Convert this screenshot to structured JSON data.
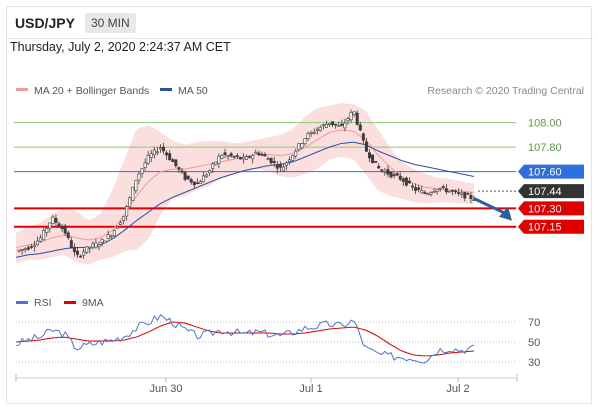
{
  "header": {
    "symbol": "USD/JPY",
    "interval": "30 MIN",
    "datetime": "Thursday, July 2, 2020 2:24:37 AM CET"
  },
  "credit": "Research © 2020 Trading Central",
  "colors": {
    "candle": "#3c3c3c",
    "ma20_band": "#f4a0a0",
    "ma50": "#2c4f9e",
    "target_green": "#8ec974",
    "pivot_blue": "#2f6fdb",
    "resistance_red": "#e00000",
    "current": "#333333",
    "rsi": "#4a74d6",
    "rsi_ma": "#e00000",
    "arrow": "#2f5c9b"
  },
  "chart_data": [
    {
      "type": "candlestick",
      "ylim": [
        106.78,
        108.25
      ],
      "legend": [
        {
          "name": "MA 20 + Bollinger Bands",
          "color": "#f29b9b"
        },
        {
          "name": "MA 50",
          "color": "#2c4f9e"
        }
      ],
      "x_ticks": [
        "Jun 30",
        "Jul 1",
        "Jul 2"
      ],
      "levels": [
        {
          "value": 108.0,
          "label": "108.00",
          "style": "green"
        },
        {
          "value": 107.8,
          "label": "107.80",
          "style": "green"
        },
        {
          "value": 107.6,
          "label": "107.60",
          "style": "blue"
        },
        {
          "value": 107.44,
          "label": "107.44",
          "style": "current"
        },
        {
          "value": 107.3,
          "label": "107.30",
          "style": "red"
        },
        {
          "value": 107.15,
          "label": "107.15",
          "style": "red"
        }
      ],
      "price_path": [
        106.95,
        106.98,
        107.05,
        107.22,
        107.12,
        106.9,
        106.98,
        107.02,
        107.1,
        107.25,
        107.55,
        107.72,
        107.8,
        107.68,
        107.55,
        107.5,
        107.6,
        107.74,
        107.72,
        107.7,
        107.76,
        107.7,
        107.62,
        107.75,
        107.88,
        107.95,
        108.0,
        107.96,
        108.1,
        107.78,
        107.63,
        107.58,
        107.54,
        107.46,
        107.42,
        107.47,
        107.44,
        107.41,
        107.38
      ],
      "bb_upper": [
        107.1,
        107.15,
        107.18,
        107.25,
        107.3,
        107.28,
        107.2,
        107.25,
        107.45,
        107.7,
        107.95,
        107.98,
        107.92,
        107.85,
        107.82,
        107.84,
        107.85,
        107.85,
        107.83,
        107.84,
        107.86,
        107.88,
        107.9,
        107.95,
        108.05,
        108.12,
        108.14,
        108.16,
        108.15,
        108.1,
        107.95,
        107.8,
        107.68,
        107.62,
        107.58,
        107.55,
        107.54,
        107.52,
        107.5
      ],
      "bb_lower": [
        106.85,
        106.88,
        106.88,
        106.9,
        106.92,
        106.86,
        106.84,
        106.88,
        106.9,
        106.95,
        106.96,
        107.05,
        107.25,
        107.38,
        107.4,
        107.45,
        107.48,
        107.55,
        107.58,
        107.6,
        107.62,
        107.6,
        107.56,
        107.55,
        107.58,
        107.62,
        107.7,
        107.72,
        107.7,
        107.58,
        107.45,
        107.4,
        107.38,
        107.35,
        107.34,
        107.35,
        107.35,
        107.34,
        107.33
      ],
      "ma20": [
        106.98,
        107.0,
        107.02,
        107.06,
        107.08,
        107.06,
        107.04,
        107.06,
        107.12,
        107.25,
        107.4,
        107.52,
        107.6,
        107.62,
        107.62,
        107.64,
        107.66,
        107.68,
        107.7,
        107.72,
        107.74,
        107.74,
        107.73,
        107.75,
        107.8,
        107.86,
        107.92,
        107.94,
        107.93,
        107.86,
        107.74,
        107.64,
        107.56,
        107.5,
        107.47,
        107.46,
        107.45,
        107.44,
        107.43
      ],
      "ma50": [
        106.9,
        106.92,
        106.93,
        106.95,
        106.97,
        106.98,
        106.98,
        107.0,
        107.05,
        107.12,
        107.2,
        107.27,
        107.34,
        107.39,
        107.43,
        107.47,
        107.51,
        107.55,
        107.58,
        107.61,
        107.63,
        107.65,
        107.66,
        107.68,
        107.72,
        107.76,
        107.8,
        107.83,
        107.84,
        107.82,
        107.77,
        107.73,
        107.69,
        107.66,
        107.64,
        107.62,
        107.6,
        107.58,
        107.56
      ]
    },
    {
      "type": "line",
      "legend": [
        {
          "name": "RSI",
          "color": "#4a74d6"
        },
        {
          "name": "9MA",
          "color": "#e00000"
        }
      ],
      "y_ticks": [
        70,
        50,
        30
      ],
      "ylim": [
        20,
        80
      ],
      "rsi": [
        48,
        52,
        55,
        62,
        58,
        44,
        47,
        50,
        52,
        56,
        64,
        70,
        76,
        70,
        62,
        56,
        58,
        62,
        60,
        58,
        60,
        58,
        56,
        60,
        64,
        66,
        68,
        66,
        72,
        44,
        38,
        36,
        35,
        34,
        32,
        42,
        44,
        42,
        44
      ],
      "rsi_ma": [
        50,
        51,
        52,
        54,
        55,
        53,
        51,
        51,
        51,
        52,
        55,
        60,
        66,
        70,
        69,
        65,
        61,
        59,
        59,
        59,
        59,
        59,
        58,
        58,
        59,
        61,
        63,
        64,
        65,
        62,
        56,
        48,
        41,
        37,
        36,
        37,
        39,
        40,
        41
      ]
    }
  ]
}
